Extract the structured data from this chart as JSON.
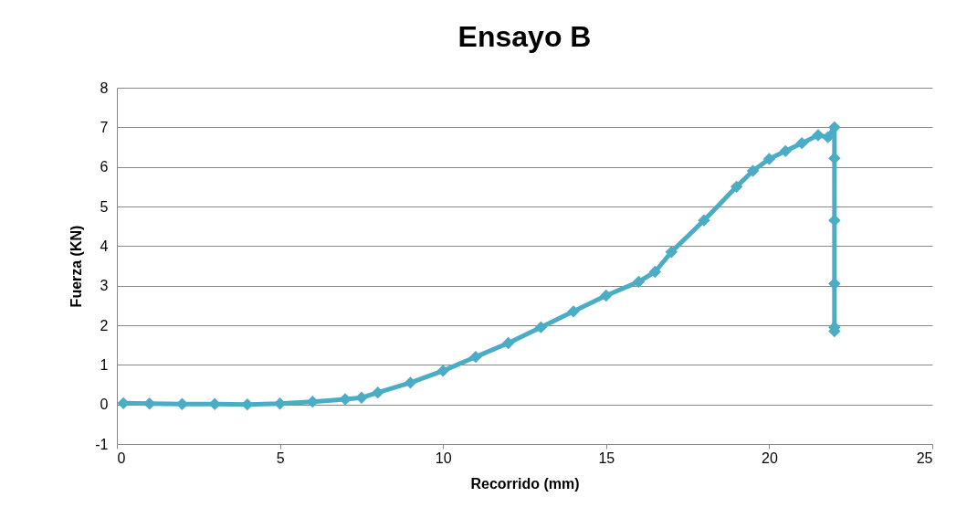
{
  "chart_data": {
    "type": "line",
    "title": "Ensayo B",
    "xlabel": "Recorrido (mm)",
    "ylabel": "Fuerza (KN)",
    "xlim": [
      0,
      25
    ],
    "xticks": [
      0,
      5,
      10,
      15,
      20,
      25
    ],
    "ylim": [
      -1,
      8
    ],
    "yticks": [
      -1,
      0,
      1,
      2,
      3,
      4,
      5,
      6,
      7,
      8
    ],
    "grid": "y",
    "marker": "diamond",
    "line_style": "solid",
    "series": [
      {
        "color": "#4bacc6",
        "x": [
          0.2,
          1,
          2,
          3,
          4,
          5,
          6,
          7,
          7.5,
          8,
          9,
          10,
          11,
          12,
          13,
          14,
          15,
          16,
          16.5,
          17,
          18,
          19,
          19.5,
          20,
          20.5,
          21,
          21.5,
          21.8,
          22,
          22,
          22,
          22,
          22,
          22
        ],
        "values": [
          0.03,
          0.02,
          0.01,
          0.01,
          0,
          0.02,
          0.07,
          0.13,
          0.17,
          0.3,
          0.55,
          0.85,
          1.2,
          1.55,
          1.95,
          2.35,
          2.75,
          3.1,
          3.35,
          3.85,
          4.65,
          5.5,
          5.9,
          6.2,
          6.4,
          6.6,
          6.8,
          6.75,
          7.0,
          6.22,
          4.65,
          3.05,
          1.95,
          1.85
        ]
      }
    ]
  }
}
